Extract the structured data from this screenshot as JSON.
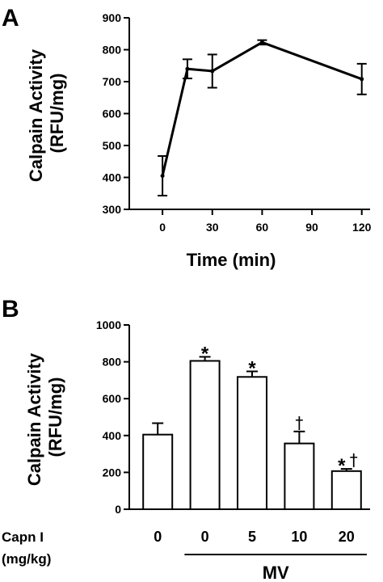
{
  "panels": {
    "a_letter": "A",
    "b_letter": "B"
  },
  "chart_data": [
    {
      "type": "line",
      "panel": "A",
      "ylabel_lines": [
        "Calpain Activity",
        "(RFU/mg)"
      ],
      "xlabel": "Time (min)",
      "xlim": [
        -20,
        125
      ],
      "ylim": [
        300,
        900
      ],
      "xticks": [
        0,
        30,
        60,
        90,
        120
      ],
      "yticks": [
        300,
        400,
        500,
        600,
        700,
        800,
        900
      ],
      "series": [
        {
          "x": [
            0,
            15,
            30,
            60,
            120
          ],
          "values": [
            405,
            740,
            733,
            823,
            708
          ],
          "errors": [
            62,
            30,
            52,
            7,
            48
          ]
        }
      ]
    },
    {
      "type": "bar",
      "panel": "B",
      "ylabel_lines": [
        "Calpain Activity",
        "(RFU/mg)"
      ],
      "ylim": [
        0,
        1000
      ],
      "yticks": [
        0,
        200,
        400,
        600,
        800,
        1000
      ],
      "row_label_lines": [
        "Capn I",
        "(mg/kg)"
      ],
      "categories": [
        "0",
        "0",
        "5",
        "10",
        "20"
      ],
      "values": [
        405,
        805,
        718,
        357,
        207
      ],
      "errors": [
        62,
        22,
        30,
        65,
        12
      ],
      "stars": [
        "",
        "*",
        "*",
        "",
        "*"
      ],
      "daggers": [
        "",
        "",
        "",
        "†",
        "†"
      ],
      "group_label": "MV",
      "group_span": [
        1,
        4
      ]
    }
  ]
}
